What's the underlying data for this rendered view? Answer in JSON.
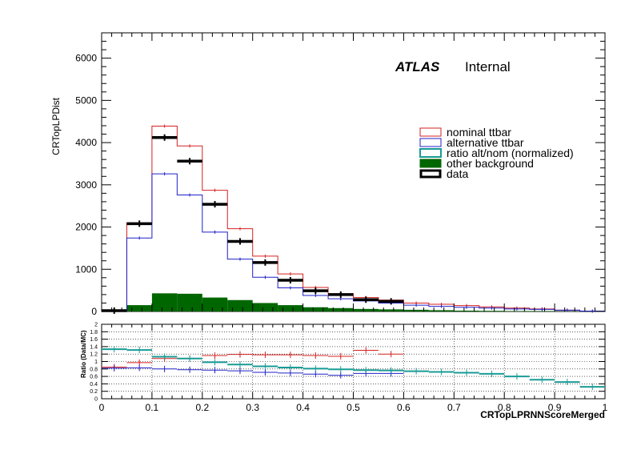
{
  "chart_data": {
    "type": "histogram",
    "labels": {
      "ylabel": "CRTopLPDist",
      "xlabel": "CRTopLPRNNScoreMerged",
      "ratio_ylabel": "Ratio (Data/MC)",
      "atlas": "ATLAS",
      "internal": "Internal"
    },
    "x_bins": [
      0,
      0.05,
      0.1,
      0.15,
      0.2,
      0.25,
      0.3,
      0.35,
      0.4,
      0.45,
      0.5,
      0.55,
      0.6,
      0.65,
      0.7,
      0.75,
      0.8,
      0.85,
      0.9,
      0.95,
      1.0
    ],
    "xlim": [
      0,
      1
    ],
    "ylim": [
      0,
      6600
    ],
    "x_ticks": [
      "0",
      "0.1",
      "0.2",
      "0.3",
      "0.4",
      "0.5",
      "0.6",
      "0.7",
      "0.8",
      "0.9",
      "1"
    ],
    "y_ticks": [
      "0",
      "1000",
      "2000",
      "3000",
      "4000",
      "5000",
      "6000"
    ],
    "ratio_ylim": [
      0,
      2
    ],
    "ratio_ticks": [
      "0",
      "0.2",
      "0.4",
      "0.6",
      "0.8",
      "1",
      "1.2",
      "1.4",
      "1.6",
      "1.8",
      "2"
    ],
    "legend": [
      {
        "label": "nominal ttbar",
        "style": "line",
        "color": "#d62020"
      },
      {
        "label": "alternative ttbar",
        "style": "line",
        "color": "#2020c8"
      },
      {
        "label": "ratio alt/nom (normalized)",
        "style": "line",
        "color": "#1a9b96"
      },
      {
        "label": "other background",
        "style": "fill",
        "color": "#006600"
      },
      {
        "label": "data",
        "style": "thick",
        "color": "#000000"
      }
    ],
    "series": [
      {
        "name": "nominal ttbar",
        "color": "#d62020",
        "values": [
          30,
          2100,
          4390,
          3920,
          2870,
          1960,
          1310,
          890,
          570,
          420,
          330,
          270,
          200,
          170,
          140,
          110,
          80,
          60,
          30,
          10
        ]
      },
      {
        "name": "alternative ttbar",
        "color": "#2020c8",
        "values": [
          20,
          1740,
          3260,
          2760,
          1880,
          1240,
          810,
          560,
          380,
          300,
          250,
          200,
          150,
          120,
          100,
          80,
          60,
          50,
          30,
          10
        ]
      },
      {
        "name": "other background",
        "color": "#006600",
        "values": [
          10,
          150,
          430,
          420,
          330,
          270,
          200,
          150,
          100,
          80,
          60,
          50,
          40,
          30,
          20,
          15,
          10,
          10,
          5,
          3
        ]
      },
      {
        "name": "data",
        "color": "#000000",
        "values": [
          20,
          2080,
          4120,
          3560,
          2540,
          1660,
          1160,
          740,
          490,
          400,
          280,
          240,
          null,
          null,
          null,
          null,
          null,
          null,
          null,
          null
        ]
      }
    ],
    "ratio_series": [
      {
        "name": "nominal ttbar",
        "color": "#d62020",
        "values": [
          0.85,
          0.97,
          1.08,
          1.08,
          1.16,
          1.19,
          1.18,
          1.18,
          1.16,
          1.14,
          1.3,
          1.2,
          null,
          null,
          null,
          null,
          null,
          null,
          null,
          null
        ]
      },
      {
        "name": "alternative ttbar",
        "color": "#2020c8",
        "values": [
          0.82,
          0.83,
          0.8,
          0.78,
          0.77,
          0.75,
          0.71,
          0.69,
          0.66,
          0.63,
          0.68,
          0.68,
          null,
          null,
          null,
          null,
          null,
          null,
          null,
          null
        ]
      },
      {
        "name": "ratio alt/nom (normalized)",
        "color": "#1a9b96",
        "values": [
          1.33,
          1.31,
          1.13,
          1.08,
          0.98,
          0.92,
          0.87,
          0.84,
          0.81,
          0.79,
          0.77,
          0.76,
          0.74,
          0.72,
          0.7,
          0.67,
          0.6,
          0.51,
          0.45,
          0.32
        ]
      }
    ]
  }
}
